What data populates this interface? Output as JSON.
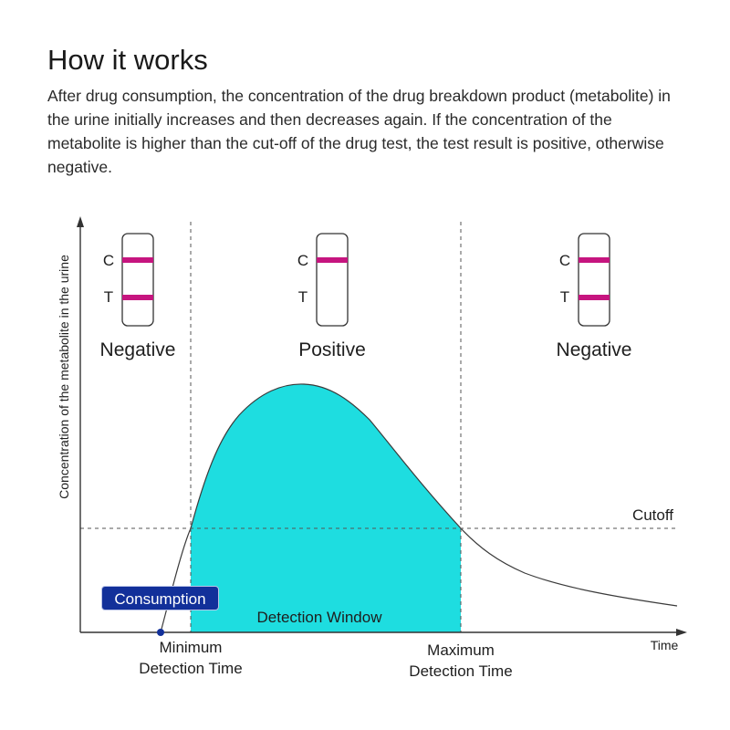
{
  "header": {
    "title": "How it works",
    "description": "After drug consumption, the concentration of the drug breakdown product (metabolite) in the urine initially increases and then decreases again. If the concentration of the metabolite is higher than the cut-off of the drug test, the test result is positive, otherwise negative."
  },
  "diagram": {
    "y_axis_label": "Concentration of the metabolite in the urine",
    "x_axis_label": "Time",
    "cutoff_label": "Cutoff",
    "consumption_label": "Consumption",
    "detection_window_label": "Detection Window",
    "min_time_line1": "Minimum",
    "min_time_line2": "Detection Time",
    "max_time_line1": "Maximum",
    "max_time_line2": "Detection Time",
    "regions": [
      {
        "result": "Negative",
        "control_label": "C",
        "test_label": "T"
      },
      {
        "result": "Positive",
        "control_label": "C",
        "test_label": "T"
      },
      {
        "result": "Negative",
        "control_label": "C",
        "test_label": "T"
      }
    ],
    "colors": {
      "fill": "#1edde0",
      "strip_line": "#c6157f",
      "consumption_bg": "#12309a",
      "axis": "#333333"
    }
  }
}
